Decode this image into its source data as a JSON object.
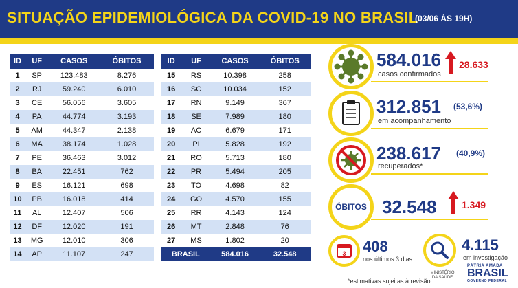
{
  "header": {
    "title": "SITUAÇÃO EPIDEMIOLÓGICA DA COVID-19 NO BRASIL",
    "date": "(03/06 ÀS 19H)"
  },
  "table_headers": {
    "id": "ID",
    "uf": "UF",
    "casos": "CASOS",
    "obitos": "ÓBITOS"
  },
  "table_left": [
    {
      "id": "1",
      "uf": "SP",
      "casos": "123.483",
      "obitos": "8.276"
    },
    {
      "id": "2",
      "uf": "RJ",
      "casos": "59.240",
      "obitos": "6.010"
    },
    {
      "id": "3",
      "uf": "CE",
      "casos": "56.056",
      "obitos": "3.605"
    },
    {
      "id": "4",
      "uf": "PA",
      "casos": "44.774",
      "obitos": "3.193"
    },
    {
      "id": "5",
      "uf": "AM",
      "casos": "44.347",
      "obitos": "2.138"
    },
    {
      "id": "6",
      "uf": "MA",
      "casos": "38.174",
      "obitos": "1.028"
    },
    {
      "id": "7",
      "uf": "PE",
      "casos": "36.463",
      "obitos": "3.012"
    },
    {
      "id": "8",
      "uf": "BA",
      "casos": "22.451",
      "obitos": "762"
    },
    {
      "id": "9",
      "uf": "ES",
      "casos": "16.121",
      "obitos": "698"
    },
    {
      "id": "10",
      "uf": "PB",
      "casos": "16.018",
      "obitos": "414"
    },
    {
      "id": "11",
      "uf": "AL",
      "casos": "12.407",
      "obitos": "506"
    },
    {
      "id": "12",
      "uf": "DF",
      "casos": "12.020",
      "obitos": "191"
    },
    {
      "id": "13",
      "uf": "MG",
      "casos": "12.010",
      "obitos": "306"
    },
    {
      "id": "14",
      "uf": "AP",
      "casos": "11.107",
      "obitos": "247"
    }
  ],
  "table_right": [
    {
      "id": "15",
      "uf": "RS",
      "casos": "10.398",
      "obitos": "258"
    },
    {
      "id": "16",
      "uf": "SC",
      "casos": "10.034",
      "obitos": "152"
    },
    {
      "id": "17",
      "uf": "RN",
      "casos": "9.149",
      "obitos": "367"
    },
    {
      "id": "18",
      "uf": "SE",
      "casos": "7.989",
      "obitos": "180"
    },
    {
      "id": "19",
      "uf": "AC",
      "casos": "6.679",
      "obitos": "171"
    },
    {
      "id": "20",
      "uf": "PI",
      "casos": "5.828",
      "obitos": "192"
    },
    {
      "id": "21",
      "uf": "RO",
      "casos": "5.713",
      "obitos": "180"
    },
    {
      "id": "22",
      "uf": "PR",
      "casos": "5.494",
      "obitos": "205"
    },
    {
      "id": "23",
      "uf": "TO",
      "casos": "4.698",
      "obitos": "82"
    },
    {
      "id": "24",
      "uf": "GO",
      "casos": "4.570",
      "obitos": "155"
    },
    {
      "id": "25",
      "uf": "RR",
      "casos": "4.143",
      "obitos": "124"
    },
    {
      "id": "26",
      "uf": "MT",
      "casos": "2.848",
      "obitos": "76"
    },
    {
      "id": "27",
      "uf": "MS",
      "casos": "1.802",
      "obitos": "20"
    }
  ],
  "total": {
    "label": "BRASIL",
    "casos": "584.016",
    "obitos": "32.548"
  },
  "stats": {
    "confirmed": {
      "value": "584.016",
      "label": "casos confirmados",
      "delta": "28.633",
      "icon": "virus-icon"
    },
    "monitoring": {
      "value": "312.851",
      "pct": "(53,6%)",
      "label": "em acompanhamento",
      "icon": "clipboard-icon"
    },
    "recovered": {
      "value": "238.617",
      "pct": "(40,9%)",
      "label": "recuperados*",
      "icon": "no-virus-icon"
    },
    "deaths": {
      "badge": "ÓBITOS",
      "value": "32.548",
      "delta": "1.349"
    },
    "last3days": {
      "value": "408",
      "label": "nos últimos 3 dias",
      "calendar_day": "3",
      "icon": "calendar-icon"
    },
    "investigation": {
      "value": "4.115",
      "label": "em investigação",
      "icon": "magnifier-icon"
    }
  },
  "footer": {
    "note": "*estimativas sujeitas à revisão.",
    "ministry": "MINISTÉRIO DA SAÚDE",
    "patria": "PÁTRIA AMADA",
    "brasil": "BRASIL",
    "gov": "GOVERNO FEDERAL"
  },
  "colors": {
    "navy": "#1f3a86",
    "yellow": "#f4d419",
    "red": "#d71920",
    "green": "#5a7a2a",
    "rowAlt": "#d3e1f5"
  }
}
